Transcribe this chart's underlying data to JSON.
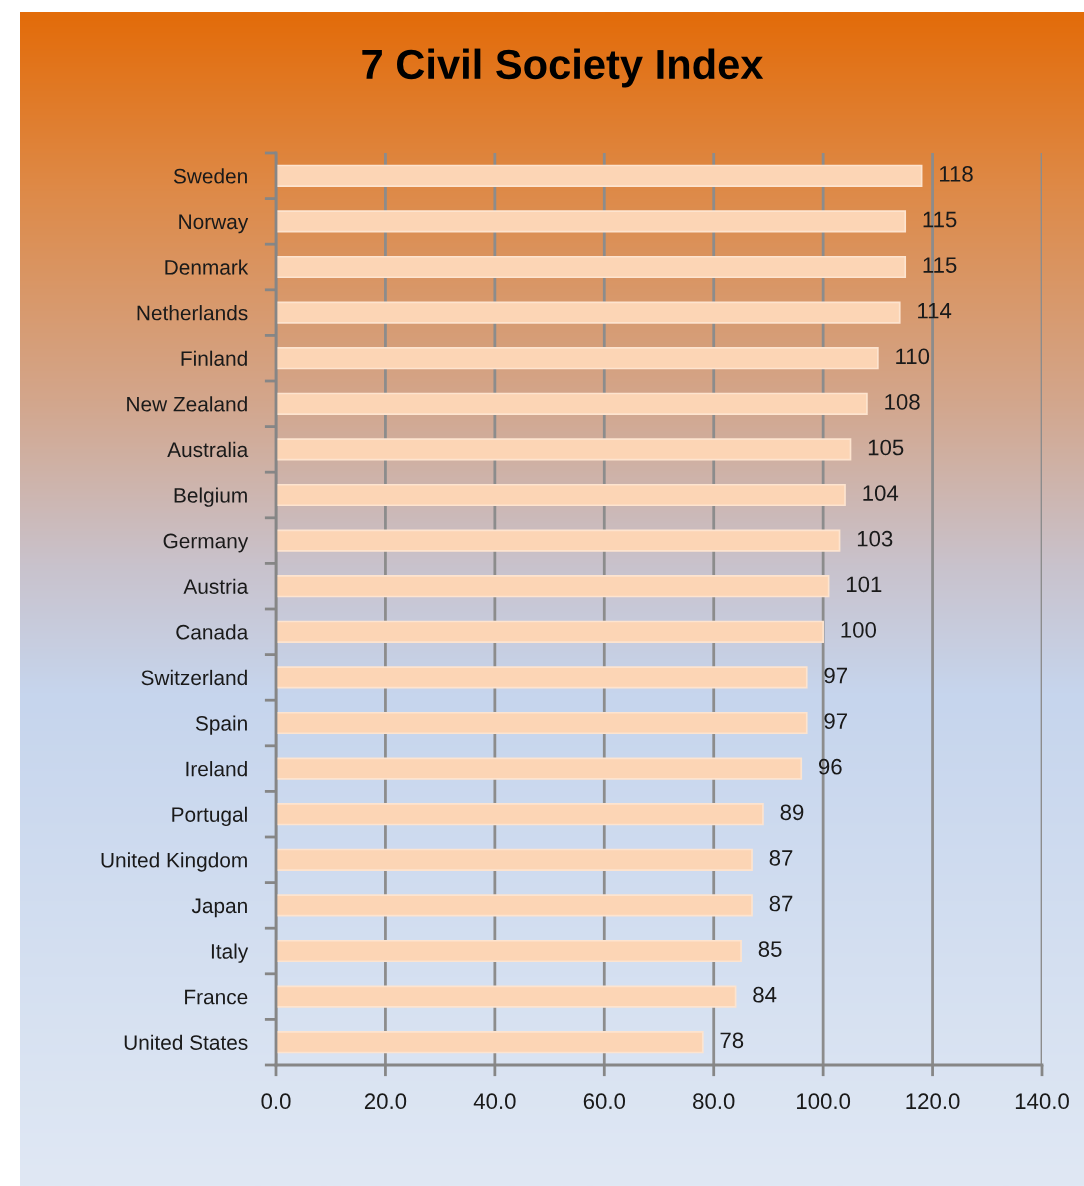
{
  "chart_data": {
    "type": "bar",
    "orientation": "horizontal",
    "title": "7 Civil Society Index",
    "categories": [
      "Sweden",
      "Norway",
      "Denmark",
      "Netherlands",
      "Finland",
      "New Zealand",
      "Australia",
      "Belgium",
      "Germany",
      "Austria",
      "Canada",
      "Switzerland",
      "Spain",
      "Ireland",
      "Portugal",
      "United Kingdom",
      "Japan",
      "Italy",
      "France",
      "United States"
    ],
    "values": [
      118,
      115,
      115,
      114,
      110,
      108,
      105,
      104,
      103,
      101,
      100,
      97,
      97,
      96,
      89,
      87,
      87,
      85,
      84,
      78
    ],
    "color": "#fcd5b5",
    "xlim": [
      0,
      140
    ],
    "xticks": [
      {
        "value": 0,
        "label": "0.0"
      },
      {
        "value": 20,
        "label": "20.0"
      },
      {
        "value": 40,
        "label": "40.0"
      },
      {
        "value": 60,
        "label": "60.0"
      },
      {
        "value": 80,
        "label": "80.0"
      },
      {
        "value": 100,
        "label": "100.0"
      },
      {
        "value": 120,
        "label": "120.0"
      },
      {
        "value": 140,
        "label": "140.0"
      }
    ],
    "grid": "x",
    "data_labels": true
  }
}
